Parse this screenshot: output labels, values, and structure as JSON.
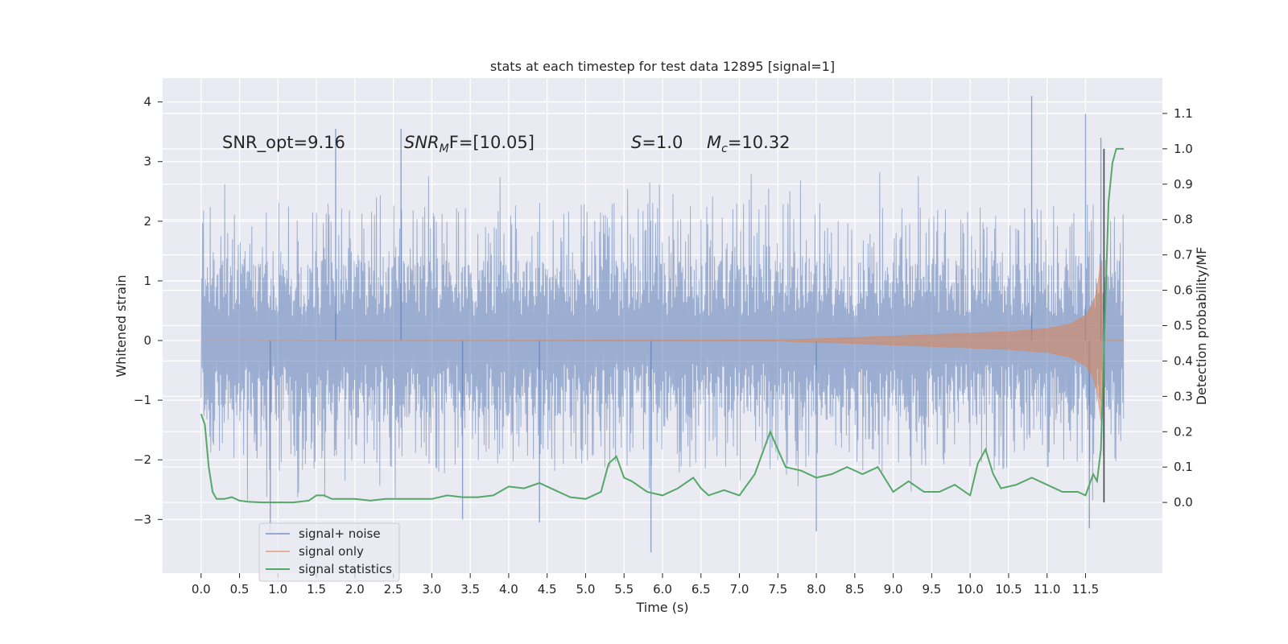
{
  "chart_data": {
    "type": "line",
    "title": "stats at each timestep for test data 12895 [signal=1]",
    "xlabel": "Time (s)",
    "ylabel": "Whitened strain",
    "ylabel_right": "Detection probability/MF",
    "xlim": [
      -0.5,
      12.5
    ],
    "ylim": [
      -3.9,
      4.4
    ],
    "ylim_right": [
      -0.2,
      1.2
    ],
    "x_ticks": [
      "0.0",
      "0.5",
      "1.0",
      "1.5",
      "2.0",
      "2.5",
      "3.0",
      "3.5",
      "4.0",
      "4.5",
      "5.0",
      "5.5",
      "6.0",
      "6.5",
      "7.0",
      "7.5",
      "8.0",
      "8.5",
      "9.0",
      "9.5",
      "10.0",
      "10.5",
      "11.0",
      "11.5"
    ],
    "y_ticks": [
      "4",
      "3",
      "2",
      "1",
      "0",
      "−1",
      "−2",
      "−3"
    ],
    "y_ticks_right": [
      "1.1",
      "1.0",
      "0.9",
      "0.8",
      "0.7",
      "0.6",
      "0.5",
      "0.4",
      "0.3",
      "0.2",
      "0.1",
      "0.0"
    ],
    "grid": true,
    "legend_placement": "lower-left",
    "annotations": {
      "snr_opt": "SNR_opt=9.16",
      "snr_mf_main": "SNR",
      "snr_mf_sub": "M",
      "snr_mf_tail": "F=[10.05]",
      "s_main": "S",
      "s_tail": "=1.0",
      "mc_main": "M",
      "mc_sub": "c",
      "mc_tail": "=10.32"
    },
    "series": [
      {
        "name": "signal+ noise",
        "axis": "left",
        "color": "#4c72b0",
        "x_range": [
          0.0,
          12.0
        ],
        "core_band": [
          -1.3,
          1.35
        ],
        "envelope_typical": [
          -2.0,
          2.1
        ],
        "extremes": [
          {
            "x": 1.75,
            "y": 3.55
          },
          {
            "x": 2.6,
            "y": 3.55
          },
          {
            "x": 10.8,
            "y": 4.1
          },
          {
            "x": 11.5,
            "y": 3.8
          },
          {
            "x": 11.7,
            "y": 3.4
          },
          {
            "x": 0.9,
            "y": -3.2
          },
          {
            "x": 5.85,
            "y": -3.55
          },
          {
            "x": 8.0,
            "y": -3.2
          },
          {
            "x": 11.55,
            "y": -3.15
          },
          {
            "x": 3.4,
            "y": -3.0
          },
          {
            "x": 4.4,
            "y": -3.05
          }
        ]
      },
      {
        "name": "signal only",
        "axis": "left",
        "color": "#dd8452",
        "envelope": [
          {
            "x": 0.0,
            "y": 0.0
          },
          {
            "x": 7.5,
            "y": 0.01
          },
          {
            "x": 8.5,
            "y": 0.05
          },
          {
            "x": 9.5,
            "y": 0.1
          },
          {
            "x": 10.5,
            "y": 0.15
          },
          {
            "x": 11.0,
            "y": 0.2
          },
          {
            "x": 11.3,
            "y": 0.28
          },
          {
            "x": 11.5,
            "y": 0.42
          },
          {
            "x": 11.6,
            "y": 0.62
          },
          {
            "x": 11.65,
            "y": 0.85
          },
          {
            "x": 11.7,
            "y": 1.35
          },
          {
            "x": 11.72,
            "y": 0.0
          },
          {
            "x": 12.0,
            "y": 0.0
          }
        ]
      },
      {
        "name": "signal statistics",
        "axis": "right",
        "color": "#55a868",
        "x": [
          0.0,
          0.05,
          0.1,
          0.15,
          0.2,
          0.3,
          0.4,
          0.5,
          0.6,
          0.8,
          1.0,
          1.2,
          1.4,
          1.5,
          1.6,
          1.7,
          1.8,
          2.0,
          2.2,
          2.4,
          2.6,
          2.8,
          3.0,
          3.2,
          3.4,
          3.6,
          3.8,
          4.0,
          4.2,
          4.4,
          4.6,
          4.8,
          5.0,
          5.2,
          5.3,
          5.4,
          5.5,
          5.6,
          5.8,
          6.0,
          6.2,
          6.4,
          6.5,
          6.6,
          6.8,
          7.0,
          7.2,
          7.3,
          7.4,
          7.5,
          7.6,
          7.8,
          8.0,
          8.2,
          8.4,
          8.6,
          8.8,
          9.0,
          9.2,
          9.4,
          9.6,
          9.8,
          10.0,
          10.1,
          10.2,
          10.3,
          10.4,
          10.6,
          10.8,
          11.0,
          11.2,
          11.4,
          11.5,
          11.6,
          11.65,
          11.7,
          11.75,
          11.8,
          11.85,
          11.9,
          12.0
        ],
        "y": [
          0.25,
          0.22,
          0.1,
          0.03,
          0.01,
          0.01,
          0.015,
          0.005,
          0.002,
          0.0,
          0.0,
          0.0,
          0.005,
          0.02,
          0.02,
          0.01,
          0.01,
          0.01,
          0.005,
          0.01,
          0.01,
          0.01,
          0.01,
          0.02,
          0.015,
          0.015,
          0.02,
          0.045,
          0.04,
          0.055,
          0.035,
          0.015,
          0.01,
          0.03,
          0.11,
          0.13,
          0.07,
          0.06,
          0.03,
          0.02,
          0.04,
          0.07,
          0.04,
          0.02,
          0.035,
          0.02,
          0.08,
          0.14,
          0.2,
          0.15,
          0.1,
          0.09,
          0.07,
          0.08,
          0.1,
          0.08,
          0.1,
          0.03,
          0.06,
          0.03,
          0.03,
          0.05,
          0.02,
          0.11,
          0.15,
          0.08,
          0.04,
          0.05,
          0.07,
          0.05,
          0.03,
          0.03,
          0.02,
          0.08,
          0.06,
          0.15,
          0.5,
          0.85,
          0.96,
          1.0,
          1.0
        ]
      }
    ],
    "vertical_line_x": 11.74
  }
}
